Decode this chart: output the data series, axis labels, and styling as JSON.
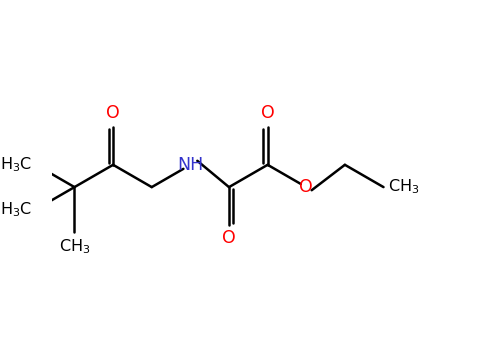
{
  "bg_color": "#FFFFFF",
  "bond_color": "#000000",
  "oxygen_color": "#FF0000",
  "nitrogen_color": "#3333CC",
  "figsize": [
    5.01,
    3.43
  ],
  "dpi": 100,
  "lw": 1.8,
  "fs": 11.5,
  "xlim": [
    -0.5,
    9.5
  ],
  "ylim": [
    -1.8,
    2.5
  ]
}
